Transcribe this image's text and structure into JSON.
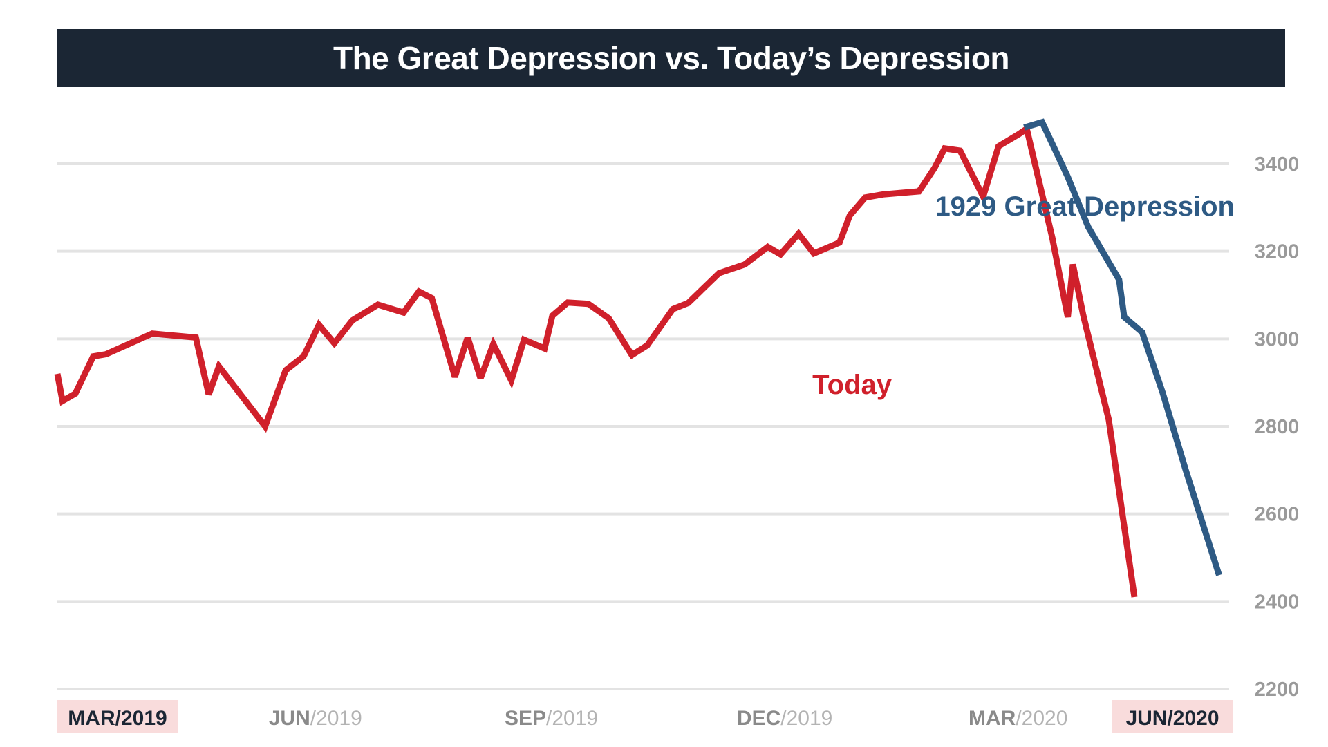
{
  "chart_data": {
    "type": "line",
    "title": "The Great Depression vs. Today’s Depression",
    "xlim": [
      "2019-03-01",
      "2020-06-01"
    ],
    "ylim": [
      2200,
      3500
    ],
    "y_axis_position": "right",
    "grid": true,
    "y_ticks": [
      "2200",
      "2400",
      "2600",
      "2800",
      "3000",
      "3200",
      "3400"
    ],
    "x_ticks": [
      {
        "date": "2019-03-01",
        "month": "MAR",
        "year": "/2019",
        "highlight": true
      },
      {
        "date": "2019-06-01",
        "month": "JUN",
        "year": "/2019",
        "highlight": false
      },
      {
        "date": "2019-09-01",
        "month": "SEP",
        "year": "/2019",
        "highlight": false
      },
      {
        "date": "2019-12-01",
        "month": "DEC",
        "year": "/2019",
        "highlight": false
      },
      {
        "date": "2020-03-01",
        "month": "MAR",
        "year": "/2020",
        "highlight": false
      },
      {
        "date": "2020-06-01",
        "month": "JUN",
        "year": "/2020",
        "highlight": true
      }
    ],
    "series": [
      {
        "name": "Today",
        "color": "#d0202b",
        "points": [
          [
            "2019-03-01",
            2920
          ],
          [
            "2019-03-03",
            2858
          ],
          [
            "2019-03-08",
            2875
          ],
          [
            "2019-03-15",
            2960
          ],
          [
            "2019-03-20",
            2965
          ],
          [
            "2019-04-07",
            3012
          ],
          [
            "2019-04-24",
            3003
          ],
          [
            "2019-04-29",
            2873
          ],
          [
            "2019-05-03",
            2937
          ],
          [
            "2019-05-21",
            2800
          ],
          [
            "2019-05-29",
            2928
          ],
          [
            "2019-06-05",
            2960
          ],
          [
            "2019-06-11",
            3032
          ],
          [
            "2019-06-17",
            2990
          ],
          [
            "2019-06-24",
            3042
          ],
          [
            "2019-07-04",
            3078
          ],
          [
            "2019-07-14",
            3060
          ],
          [
            "2019-07-20",
            3108
          ],
          [
            "2019-07-25",
            3093
          ],
          [
            "2019-08-03",
            2913
          ],
          [
            "2019-08-08",
            3003
          ],
          [
            "2019-08-13",
            2910
          ],
          [
            "2019-08-18",
            2988
          ],
          [
            "2019-08-25",
            2905
          ],
          [
            "2019-08-30",
            2998
          ],
          [
            "2019-09-07",
            2978
          ],
          [
            "2019-09-10",
            3053
          ],
          [
            "2019-09-16",
            3083
          ],
          [
            "2019-09-24",
            3080
          ],
          [
            "2019-10-02",
            3047
          ],
          [
            "2019-10-11",
            2963
          ],
          [
            "2019-10-17",
            2985
          ],
          [
            "2019-10-27",
            3068
          ],
          [
            "2019-11-02",
            3082
          ],
          [
            "2019-11-14",
            3150
          ],
          [
            "2019-11-24",
            3170
          ],
          [
            "2019-12-03",
            3210
          ],
          [
            "2019-12-08",
            3193
          ],
          [
            "2019-12-15",
            3240
          ],
          [
            "2019-12-21",
            3195
          ],
          [
            "2019-12-31",
            3220
          ],
          [
            "2020-01-04",
            3282
          ],
          [
            "2020-01-10",
            3323
          ],
          [
            "2020-01-17",
            3330
          ],
          [
            "2020-01-31",
            3337
          ],
          [
            "2020-02-06",
            3390
          ],
          [
            "2020-02-10",
            3435
          ],
          [
            "2020-02-16",
            3430
          ],
          [
            "2020-02-25",
            3325
          ],
          [
            "2020-03-02",
            3440
          ],
          [
            "2020-03-10",
            3468
          ],
          [
            "2020-03-13",
            3480
          ],
          [
            "2020-03-23",
            3230
          ],
          [
            "2020-03-29",
            3050
          ],
          [
            "2020-03-31",
            3170
          ],
          [
            "2020-04-04",
            3055
          ],
          [
            "2020-04-14",
            2815
          ],
          [
            "2020-04-24",
            2410
          ]
        ]
      },
      {
        "name": "1929 Great Depression",
        "color": "#2e5a84",
        "points": [
          [
            "2020-03-12",
            3483
          ],
          [
            "2020-03-19",
            3495
          ],
          [
            "2020-03-29",
            3370
          ],
          [
            "2020-04-06",
            3255
          ],
          [
            "2020-04-18",
            3135
          ],
          [
            "2020-04-20",
            3050
          ],
          [
            "2020-04-27",
            3015
          ],
          [
            "2020-05-05",
            2877
          ],
          [
            "2020-05-14",
            2700
          ],
          [
            "2020-05-27",
            2460
          ]
        ]
      }
    ],
    "annotations": [
      {
        "text": "1929 Great Depression",
        "color": "#2e5a84"
      },
      {
        "text": "Today",
        "color": "#d0202b"
      }
    ]
  }
}
